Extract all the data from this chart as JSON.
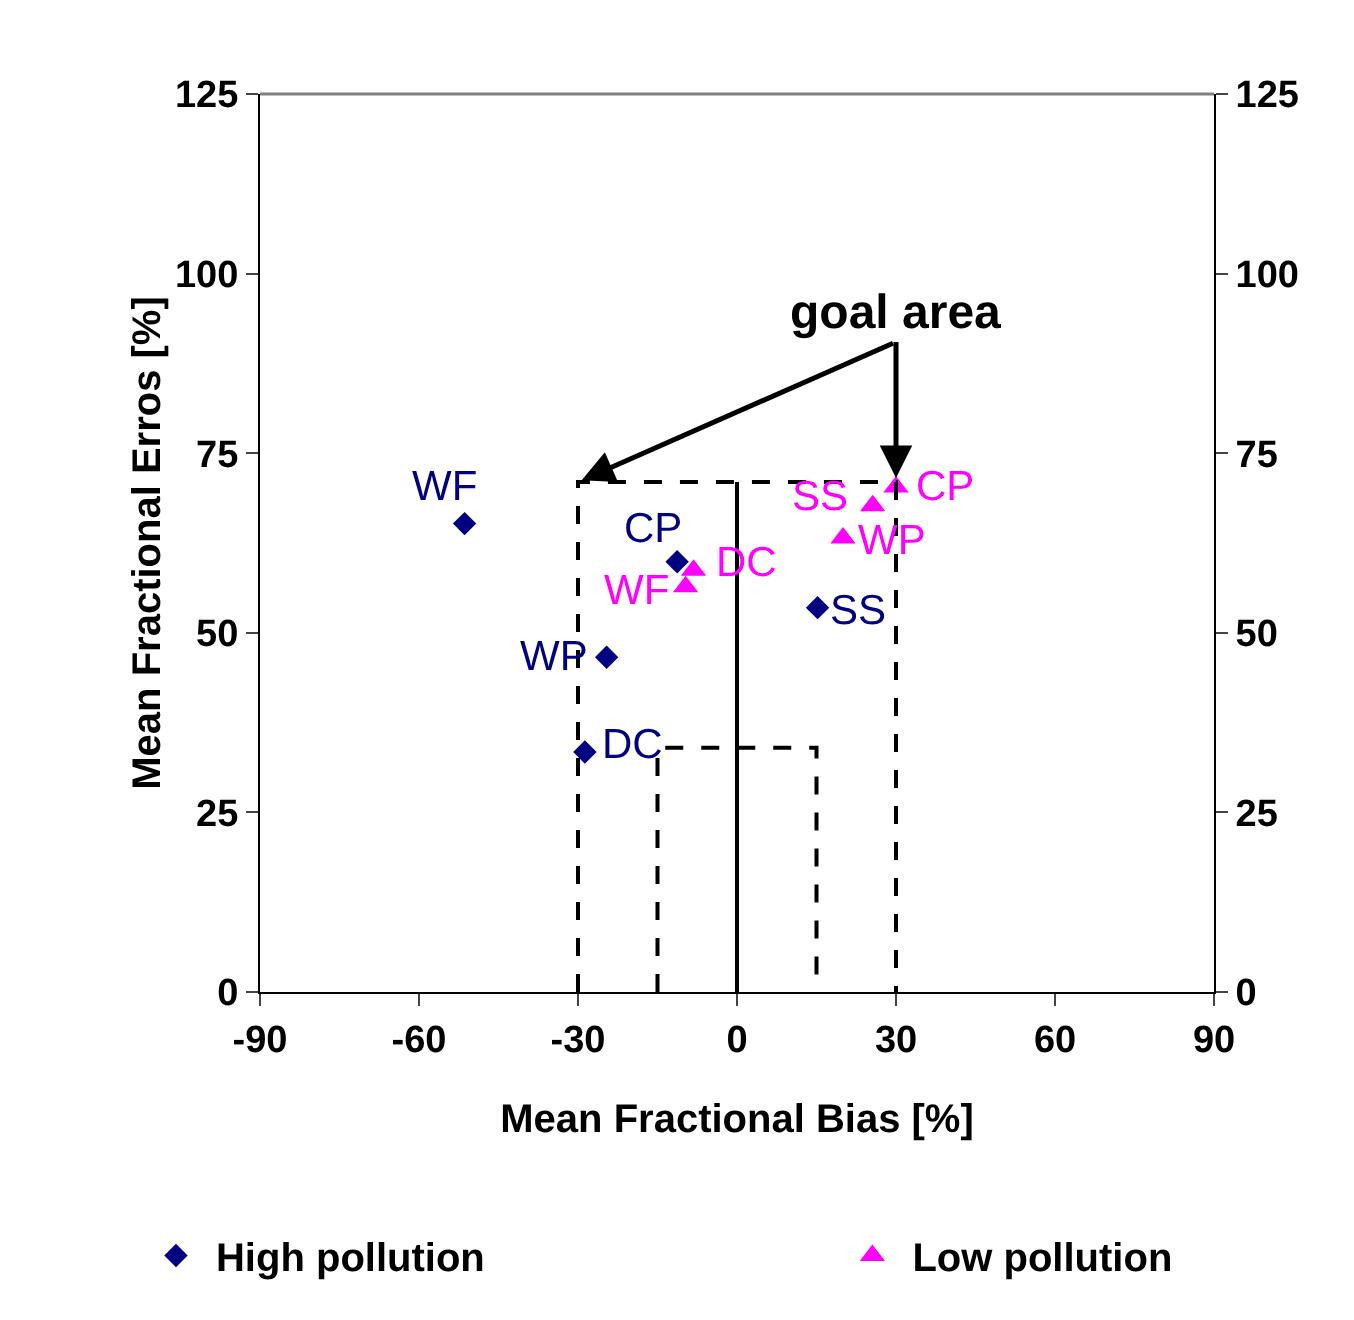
{
  "chart_data": {
    "type": "scatter",
    "xlabel": "Mean Fractional Bias [%]",
    "ylabel": "Mean Fractional Erros [%]",
    "xlim": [
      -90,
      90
    ],
    "xticks": [
      -90,
      -60,
      -30,
      0,
      30,
      60,
      90
    ],
    "ylim": [
      0,
      125
    ],
    "yticks": [
      0,
      25,
      50,
      75,
      100,
      125
    ],
    "y2lim": [
      0,
      125
    ],
    "y2ticks": [
      0,
      25,
      50,
      75,
      100,
      125
    ],
    "grid": false,
    "legend": "bottom",
    "series": [
      {
        "name": "High pollution",
        "marker": "diamond",
        "color": "#000080",
        "x": [
          -51.4,
          -11.3,
          15.2,
          -24.6,
          -28.7
        ],
        "values": [
          65.2,
          59.9,
          53.5,
          46.6,
          33.4
        ]
      },
      {
        "name": "Low pollution",
        "marker": "triangle",
        "color": "#ff00ff",
        "x": [
          30,
          25.6,
          20,
          -8.2,
          -9.7
        ],
        "values": [
          70.3,
          67.7,
          63.2,
          58.7,
          56.4
        ]
      },
      {
        "type": "line",
        "line_style": "dashed",
        "color": "#000000",
        "x": [
          -30,
          -30,
          30,
          30
        ],
        "values": [
          0,
          71,
          71,
          0
        ]
      },
      {
        "type": "line",
        "line_style": "dashed",
        "color": "#000000",
        "x": [
          -15,
          -15,
          15,
          15
        ],
        "values": [
          0,
          34,
          34,
          0
        ]
      },
      {
        "type": "line",
        "line_style": "solid",
        "color": "#000000",
        "x": [
          0,
          0
        ],
        "values": [
          0,
          71
        ]
      }
    ],
    "annotations": [
      {
        "text": "goal area",
        "x": 30,
        "y": 71
      },
      {
        "text": "WF",
        "x": -51.4,
        "y": 65.2
      },
      {
        "text": "CP",
        "x": -11.3,
        "y": 59.9
      },
      {
        "text": "SS",
        "x": 15.2,
        "y": 53.5
      },
      {
        "text": "WP",
        "x": -24.6,
        "y": 46.6
      },
      {
        "text": "DC",
        "x": -28.7,
        "y": 33.4
      },
      {
        "text": "CP",
        "x": 30,
        "y": 70.3
      },
      {
        "text": "SS",
        "x": 25.6,
        "y": 67.7
      },
      {
        "text": "WP",
        "x": 20,
        "y": 63.2
      },
      {
        "text": "DC",
        "x": -8.2,
        "y": 58.7
      },
      {
        "text": "WF",
        "x": -9.7,
        "y": 56.4
      }
    ]
  }
}
